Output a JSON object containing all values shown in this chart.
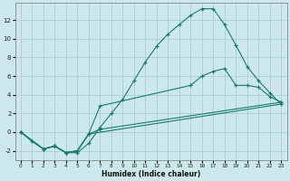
{
  "xlabel": "Humidex (Indice chaleur)",
  "background_color": "#cce8ec",
  "grid_color": "#aacdd3",
  "line_color": "#1a7a6e",
  "xlim": [
    -0.5,
    23.5
  ],
  "ylim": [
    -3.0,
    13.8
  ],
  "xticks": [
    0,
    1,
    2,
    3,
    4,
    5,
    6,
    7,
    8,
    9,
    10,
    11,
    12,
    13,
    14,
    15,
    16,
    17,
    18,
    19,
    20,
    21,
    22,
    23
  ],
  "yticks": [
    -2,
    0,
    2,
    4,
    6,
    8,
    10,
    12
  ],
  "curve1_x": [
    0,
    1,
    2,
    3,
    4,
    5,
    6,
    7,
    8,
    9,
    10,
    11,
    12,
    13,
    14,
    15,
    16,
    17,
    18,
    19,
    20,
    21,
    22,
    23
  ],
  "curve1_y": [
    0,
    -1,
    -1.8,
    -1.5,
    -2.2,
    -2.2,
    -1.2,
    0.5,
    2.0,
    3.5,
    5.5,
    7.5,
    9.2,
    10.5,
    11.5,
    12.5,
    13.2,
    13.2,
    11.5,
    9.3,
    7.0,
    5.5,
    4.2,
    3.0
  ],
  "curve2_x": [
    0,
    2,
    3,
    4,
    5,
    6,
    7,
    15,
    16,
    17,
    18,
    19,
    20,
    21,
    22,
    23
  ],
  "curve2_y": [
    0,
    -1.8,
    -1.5,
    -2.2,
    -2.0,
    -0.2,
    2.8,
    5.0,
    6.0,
    6.5,
    6.8,
    5.0,
    5.0,
    4.8,
    3.8,
    3.2
  ],
  "curve3_x": [
    0,
    2,
    3,
    4,
    5,
    6,
    7,
    23
  ],
  "curve3_y": [
    0,
    -1.8,
    -1.5,
    -2.2,
    -2.0,
    -0.2,
    0.3,
    3.2
  ],
  "curve4_x": [
    0,
    2,
    3,
    4,
    5,
    6,
    23
  ],
  "curve4_y": [
    0,
    -1.8,
    -1.5,
    -2.2,
    -2.0,
    -0.2,
    3.0
  ]
}
